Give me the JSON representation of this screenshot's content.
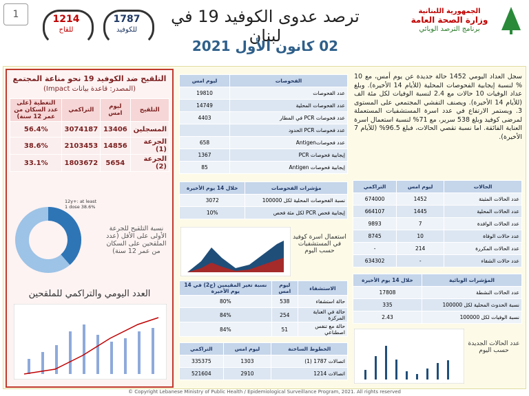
{
  "header": {
    "page_number": "1",
    "hotline_vaccine": {
      "number": "1214",
      "label": "للقاح"
    },
    "hotline_covid": {
      "number": "1787",
      "label": "للكوفيد"
    },
    "title": "ترصد عدوى الكوفيد 19 في لبنان",
    "date": "02 كانون الأول 2021",
    "logo": [
      "الجمهورية اللبنانية",
      "وزارة الصحة العامة",
      "برنامج الترصد الوبائي"
    ]
  },
  "vaccination": {
    "title": "التلقيح ضد الكوفيد 19  نحو مناعة المجتمع",
    "source": "(المصدر: قاعدة بيانات Impact)",
    "table": {
      "header": [
        "التلقيح",
        "ليوم امس",
        "التراكمي",
        "التغطية (على عدد السكان من عمر 12 سنة)"
      ],
      "rows": [
        [
          "المسجلين",
          "13406",
          "3074187",
          "56.4%"
        ],
        [
          "الجرعة (1)",
          "14856",
          "2103453",
          "38.6%"
        ],
        [
          "الجرعة (2)",
          "5654",
          "1803672",
          "33.1%"
        ]
      ]
    },
    "donut": {
      "label": "12y+: at least 1 dose 38.6%",
      "value": 38.6,
      "max": 100
    },
    "donut_caption": "نسبة التلقيح للجرعة الأولى على الأقل (عدد الملقحين على السكان من عمر 12 سنة)",
    "chart_title": "العدد اليومي والتراكمي للملقحين"
  },
  "tests": {
    "table": {
      "header": [
        "الفحوصات",
        "ليوم امس"
      ],
      "rows": [
        [
          "عدد الفحوصات",
          "19810"
        ],
        [
          "عدد الفحوصات المحلية",
          "14749"
        ],
        [
          "عدد فحوصات PCR في المطار",
          "4403"
        ],
        [
          "عدد فحوصات PCR الحدود"
        ],
        [
          "عدد فحوصاتAntigen",
          "658"
        ],
        [
          "إيجابية فحوصات PCR",
          "1367"
        ],
        [
          "إيجابية فحوصات Antigen",
          "85"
        ]
      ]
    },
    "indicators": {
      "header": [
        "مؤشرات الفحوصات",
        "خلال 14 يوم الأخيرة"
      ],
      "rows": [
        [
          "نسبة الفحوصات المحلية لكل 100000",
          "3072"
        ],
        [
          "إيجابية فحص PCR لكل مئة فحص",
          "10%"
        ]
      ]
    },
    "beds_caption": "استعمال اسرة كوفيد في المستشفيات حسب اليوم"
  },
  "hospital": {
    "header": [
      "الاستشفاء",
      "ليوم امس",
      "نسبة تغير المقيمين (ج2) في 14 يوم الأخيرة"
    ],
    "rows": [
      [
        "حالة استشفاء",
        "538",
        "80%"
      ],
      [
        "حالة في العناية المركزة",
        "254",
        "84%"
      ],
      [
        "حالة مع تنفس اصطناعي",
        "51",
        "84%"
      ]
    ]
  },
  "hotlines": {
    "header": [
      "الخطوط الساخنة",
      "ليوم امس",
      "التراكمي"
    ],
    "rows": [
      [
        "اتصالات 1787 (1)",
        "1303",
        "335375"
      ],
      [
        "اتصالات 1214",
        "2910",
        "521604"
      ]
    ]
  },
  "summary": "سجل العداد اليومي 1452 حالة جديدة عن يوم أمس، مع 10 % لنسبة إيجابية الفحوصات المحلية (للأيام 14 الأخيرة). وبلغ عداد الوفيات 10 حالات مع 2.4 لنسبة الوفيات لكل مئة الف (للأيام 14 الأخيرة). ويصنف التفشي المجتمعي على المستوى 3. ويستمر الارتفاع في عدد اسرة المستشفيات المستعملة لمرضى كوفيد وبلغ 538 سرير، مع 71% لنسبة استعمال اسرة العناية الفائقة. اما نسبة تقصي الحالات، فبلغ 96.5% (للأيام 7 الأخيرة).",
  "cases": {
    "header": [
      "الحالات",
      "ليوم امس",
      "التراكمي"
    ],
    "rows": [
      [
        "عدد الحالات المثبتة",
        "1452",
        "674000"
      ],
      [
        "عدد الحالات المحلية",
        "1445",
        "664107"
      ],
      [
        "عدد الحالات الوافدة",
        "7",
        "9893"
      ],
      [
        "عدد حالات الوفاة",
        "10",
        "8745"
      ],
      [
        "عدد الحالات المكررة",
        "214",
        "-"
      ],
      [
        "عدد حالات الشفاء",
        "-",
        "634302"
      ]
    ]
  },
  "epi_indicators": {
    "header": [
      "المؤشرات الوبائية",
      "خلال 14 يوم الأخيرة"
    ],
    "rows": [
      [
        "عدد الحالات النشطة",
        "17808"
      ],
      [
        "نسبة الحدوث المحلية لكل 100000",
        "335"
      ],
      [
        "نسبة الوفيات لكل 100000",
        "2.43"
      ]
    ]
  },
  "new_cases_caption": "عدد الحالات الجديدة حسب اليوم",
  "footer": "© Copyright Lebanese Ministry of Public Health / Epidemiological Surveillance Program, 2021. All rights reserved"
}
